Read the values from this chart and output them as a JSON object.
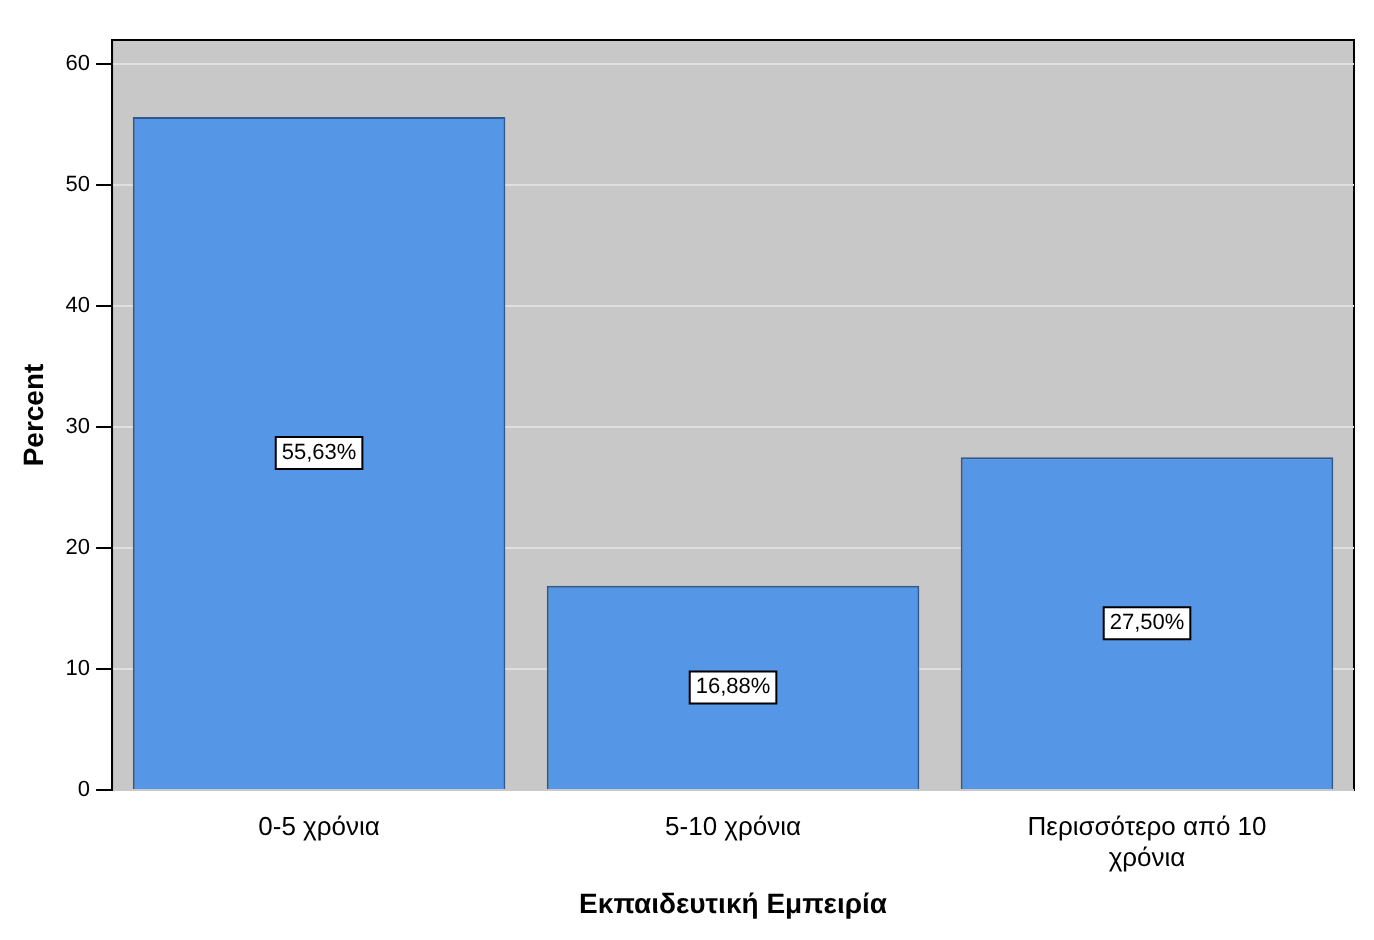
{
  "chart_data": {
    "type": "bar",
    "xlabel": "Εκπαιδευτική Εμπειρία",
    "ylabel": "Percent",
    "categories": [
      "0-5 χρόνια",
      "5-10 χρόνια",
      "Περισσότερο από 10 χρόνια"
    ],
    "values": [
      55.63,
      16.88,
      27.5
    ],
    "value_labels": [
      "55,63%",
      "16,88%",
      "27,50%"
    ],
    "color": "#5596e6",
    "ylim": [
      0,
      62
    ],
    "yticks": [
      0,
      10,
      20,
      30,
      40,
      50,
      60
    ],
    "grid": "y",
    "legend": false
  }
}
